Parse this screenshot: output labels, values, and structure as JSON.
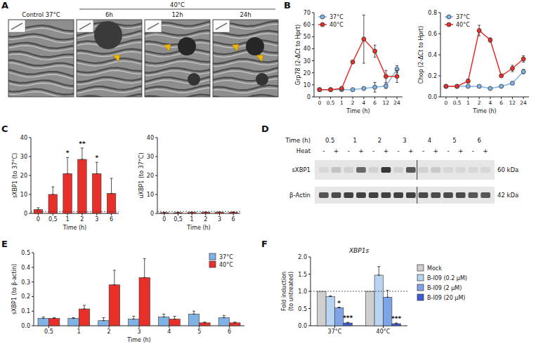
{
  "chart_data": [
    {
      "type": "image",
      "panel": "A",
      "group_label": "40°C",
      "images": [
        "Control 37°C",
        "6h",
        "12h",
        "24h"
      ]
    },
    {
      "type": "line",
      "panel": "B",
      "y_label": "Grp78 (2-ΔCt to Hprt)",
      "x_label": "Time (h)",
      "categories": [
        "0",
        "0.5",
        "1",
        "2",
        "4",
        "6",
        "12",
        "24"
      ],
      "ylim": [
        0,
        70
      ],
      "yticks": [
        0,
        10,
        20,
        30,
        40,
        50,
        60,
        70
      ],
      "legend": "upper left",
      "marker": "circle",
      "series": [
        {
          "name": "37°C",
          "color": "#7fb2e5",
          "values": [
            6,
            6,
            6,
            6,
            7,
            8,
            9,
            23
          ],
          "errors": [
            0.5,
            0.5,
            0.5,
            0.5,
            0.5,
            4,
            2,
            3
          ]
        },
        {
          "name": "40°C",
          "color": "#e8302a",
          "values": [
            6,
            6,
            7,
            29,
            48,
            38,
            17,
            17
          ],
          "errors": [
            0.5,
            0.5,
            0.5,
            1,
            20,
            5,
            5,
            5
          ]
        }
      ]
    },
    {
      "type": "line",
      "y_label": "Chop (2-ΔCt to Hprt)",
      "x_label": "Time (h)",
      "categories": [
        "0",
        "0.5",
        "1",
        "2",
        "4",
        "6",
        "12",
        "24"
      ],
      "ylim": [
        0,
        0.8
      ],
      "yticks": [
        {
          "value": 0,
          "label": "0.0"
        },
        0.2,
        0.4,
        0.6,
        0.8
      ],
      "legend": "upper left",
      "marker": "circle",
      "series": [
        {
          "name": "37°C",
          "color": "#7fb2e5",
          "values": [
            0.1,
            0.1,
            0.1,
            0.1,
            0.08,
            0.1,
            0.13,
            0.24
          ],
          "errors": [
            0.005,
            0.005,
            0.005,
            0.005,
            0.005,
            0.01,
            0.01,
            0.02
          ]
        },
        {
          "name": "40°C",
          "color": "#e8302a",
          "values": [
            0.1,
            0.1,
            0.15,
            0.63,
            0.54,
            0.2,
            0.27,
            0.36
          ],
          "errors": [
            0.005,
            0.005,
            0.02,
            0.05,
            0.02,
            0.01,
            0.03,
            0.03
          ]
        }
      ]
    },
    {
      "type": "bar",
      "panel": "C",
      "y_label": "sXBP1 (to 37°C)",
      "x_label": "Time (h)",
      "categories": [
        "0",
        "0,5",
        "1",
        "2",
        "3",
        "6"
      ],
      "ylim": [
        0,
        40
      ],
      "yticks": [
        0,
        10,
        20,
        30,
        40
      ],
      "color": "#e8302a",
      "values": [
        2,
        10,
        21,
        28.5,
        21,
        10.5
      ],
      "errors": [
        1,
        4,
        8.5,
        6,
        6,
        8
      ],
      "annotations": [
        null,
        null,
        "*",
        "**",
        "*",
        null
      ],
      "ref_line": 1
    },
    {
      "type": "bar",
      "y_label": "uXBP1 (to 37°C)",
      "x_label": "Time (h)",
      "categories": [
        "0",
        "0,5",
        "1",
        "2",
        "3",
        "6"
      ],
      "ylim": [
        0,
        40
      ],
      "yticks": [
        0,
        10,
        20,
        30,
        40
      ],
      "color": "#e8302a",
      "values": [
        0.4,
        0.4,
        0.5,
        0.6,
        0.6,
        0.6
      ],
      "errors": [
        0.2,
        0.2,
        0.2,
        0.2,
        0.2,
        0.2
      ],
      "ref_line": 1
    },
    {
      "type": "blot",
      "panel": "D",
      "time_label": "Time (h)",
      "times": [
        "0.5",
        "1",
        "2",
        "3",
        "4",
        "5",
        "6"
      ],
      "condition_label": "Heat",
      "conditions": [
        "-",
        "+"
      ],
      "rows": [
        {
          "label": "sXBP1",
          "size": "60 kDa",
          "intensity": [
            0.05,
            0.15,
            0.08,
            0.6,
            0.08,
            0.85,
            0.08,
            0.7,
            0.08,
            0.12,
            0.05,
            0.05,
            0.05,
            0.05
          ]
        },
        {
          "label": "β-Actin",
          "size": "42 kDa",
          "intensity": [
            0.7,
            0.75,
            0.8,
            0.8,
            0.8,
            0.8,
            0.8,
            0.8,
            0.75,
            0.75,
            0.75,
            0.75,
            0.7,
            0.7
          ]
        }
      ]
    },
    {
      "type": "bar",
      "panel": "E",
      "y_label": "sXBP1 (to β-actin)",
      "x_label": "Time (h)",
      "categories": [
        "0.5",
        "1",
        "2",
        "3",
        "4",
        "5",
        "6"
      ],
      "ylim": [
        0,
        0.5
      ],
      "yticks": [
        {
          "value": 0,
          "label": "0.0"
        },
        0.1,
        0.2,
        0.3,
        0.4,
        0.5
      ],
      "legend": "upper right",
      "series": [
        {
          "name": "37°C",
          "color": "#7fb2e5",
          "values": [
            0.05,
            0.05,
            0.035,
            0.045,
            0.06,
            0.08,
            0.055
          ],
          "errors": [
            0.01,
            0.005,
            0.02,
            0.02,
            0.02,
            0.02,
            0.015
          ]
        },
        {
          "name": "40°C",
          "color": "#e8302a",
          "values": [
            0.05,
            0.115,
            0.28,
            0.33,
            0.045,
            0.02,
            0.02
          ],
          "errors": [
            0.005,
            0.025,
            0.1,
            0.13,
            0.02,
            0.005,
            0.005
          ]
        }
      ]
    },
    {
      "type": "bar",
      "panel": "F",
      "title": "XBP1s",
      "y_label": "Fold induction (to untreated)",
      "categories": [
        "37°C",
        "40°C"
      ],
      "ylim": [
        0,
        2
      ],
      "yticks": [
        {
          "value": 0,
          "label": "0.0"
        },
        0.5,
        {
          "value": 1,
          "label": "1.0"
        },
        1.5,
        {
          "value": 2,
          "label": "2.0"
        }
      ],
      "legend": "right",
      "ref_line": 1,
      "series": [
        {
          "name": "Mock",
          "color": "#cfcfcf",
          "values": [
            1,
            1
          ],
          "errors": [
            0,
            0
          ],
          "annotations": [
            null,
            null
          ]
        },
        {
          "name": "B-I09 (0.2 µM)",
          "color": "#b8d4f0",
          "values": [
            0.85,
            1.47
          ],
          "errors": [
            0.02,
            0.25
          ],
          "annotations": [
            null,
            null
          ]
        },
        {
          "name": "B-I09 (2 µM)",
          "color": "#7fa4e6",
          "values": [
            0.52,
            0.83
          ],
          "errors": [
            0.02,
            0.2
          ],
          "annotations": [
            "*",
            null
          ]
        },
        {
          "name": "B-I09 (20 µM)",
          "color": "#3f5bd0",
          "values": [
            0.08,
            0.06
          ],
          "errors": [
            0.02,
            0.02
          ],
          "annotations": [
            "***",
            "***"
          ]
        }
      ]
    }
  ]
}
